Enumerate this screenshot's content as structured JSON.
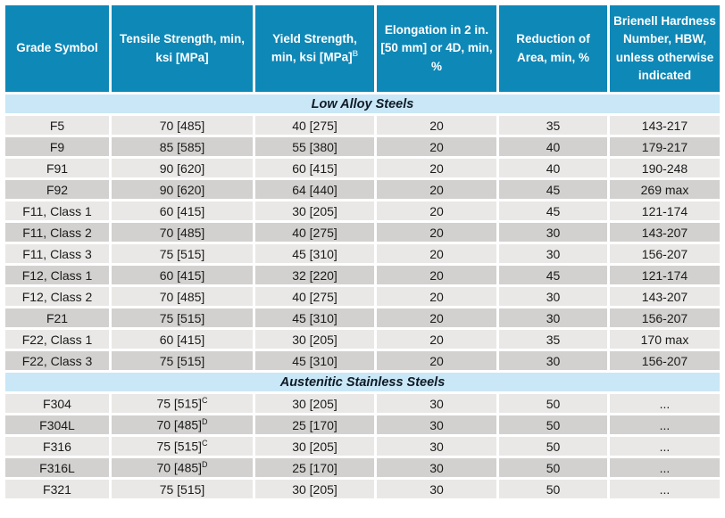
{
  "colors": {
    "header_bg": "#0e88b7",
    "band_bg": "#c9e7f6",
    "row_light": "#e9e8e6",
    "row_dark": "#d3d1cf",
    "header_text": "#ffffff",
    "body_text": "#1a1a1a",
    "band_text": "#0f1a26"
  },
  "table": {
    "columns": [
      {
        "label": "Grade Symbol",
        "sup": ""
      },
      {
        "label": "Tensile Strength, min, ksi [MPa]",
        "sup": ""
      },
      {
        "label": "Yield Strength, min, ksi [MPa]",
        "sup": "B"
      },
      {
        "label": "Elongation in 2 in. [50 mm] or 4D, min, %",
        "sup": ""
      },
      {
        "label": "Reduction of Area, min, %",
        "sup": ""
      },
      {
        "label": "Brienell Hardness Number, HBW, unless otherwise indicated",
        "sup": ""
      }
    ],
    "sections": [
      {
        "title": "Low Alloy Steels",
        "rows": [
          {
            "grade": "F5",
            "tensile": "70 [485]",
            "tensile_sup": "",
            "yield": "40 [275]",
            "elongation": "20",
            "reduction": "35",
            "hardness": "143-217"
          },
          {
            "grade": "F9",
            "tensile": "85 [585]",
            "tensile_sup": "",
            "yield": "55 [380]",
            "elongation": "20",
            "reduction": "40",
            "hardness": "179-217"
          },
          {
            "grade": "F91",
            "tensile": "90 [620]",
            "tensile_sup": "",
            "yield": "60 [415]",
            "elongation": "20",
            "reduction": "40",
            "hardness": "190-248"
          },
          {
            "grade": "F92",
            "tensile": "90 [620]",
            "tensile_sup": "",
            "yield": "64 [440]",
            "elongation": "20",
            "reduction": "45",
            "hardness": "269 max"
          },
          {
            "grade": "F11, Class 1",
            "tensile": "60 [415]",
            "tensile_sup": "",
            "yield": "30 [205]",
            "elongation": "20",
            "reduction": "45",
            "hardness": "121-174"
          },
          {
            "grade": "F11, Class 2",
            "tensile": "70 [485]",
            "tensile_sup": "",
            "yield": "40 [275]",
            "elongation": "20",
            "reduction": "30",
            "hardness": "143-207"
          },
          {
            "grade": "F11, Class 3",
            "tensile": "75 [515]",
            "tensile_sup": "",
            "yield": "45 [310]",
            "elongation": "20",
            "reduction": "30",
            "hardness": "156-207"
          },
          {
            "grade": "F12, Class 1",
            "tensile": "60 [415]",
            "tensile_sup": "",
            "yield": "32 [220]",
            "elongation": "20",
            "reduction": "45",
            "hardness": "121-174"
          },
          {
            "grade": "F12, Class 2",
            "tensile": "70 [485]",
            "tensile_sup": "",
            "yield": "40 [275]",
            "elongation": "20",
            "reduction": "30",
            "hardness": "143-207"
          },
          {
            "grade": "F21",
            "tensile": "75 [515]",
            "tensile_sup": "",
            "yield": "45 [310]",
            "elongation": "20",
            "reduction": "30",
            "hardness": "156-207"
          },
          {
            "grade": "F22, Class 1",
            "tensile": "60 [415]",
            "tensile_sup": "",
            "yield": "30 [205]",
            "elongation": "20",
            "reduction": "35",
            "hardness": "170 max"
          },
          {
            "grade": "F22, Class 3",
            "tensile": "75 [515]",
            "tensile_sup": "",
            "yield": "45 [310]",
            "elongation": "20",
            "reduction": "30",
            "hardness": "156-207"
          }
        ]
      },
      {
        "title": "Austenitic Stainless Steels",
        "rows": [
          {
            "grade": "F304",
            "tensile": "75 [515]",
            "tensile_sup": "C",
            "yield": "30 [205]",
            "elongation": "30",
            "reduction": "50",
            "hardness": "..."
          },
          {
            "grade": "F304L",
            "tensile": "70 [485]",
            "tensile_sup": "D",
            "yield": "25 [170]",
            "elongation": "30",
            "reduction": "50",
            "hardness": "..."
          },
          {
            "grade": "F316",
            "tensile": "75 [515]",
            "tensile_sup": "C",
            "yield": "30 [205]",
            "elongation": "30",
            "reduction": "50",
            "hardness": "..."
          },
          {
            "grade": "F316L",
            "tensile": "70 [485]",
            "tensile_sup": "D",
            "yield": "25 [170]",
            "elongation": "30",
            "reduction": "50",
            "hardness": "..."
          },
          {
            "grade": "F321",
            "tensile": "75 [515]",
            "tensile_sup": "",
            "yield": "30 [205]",
            "elongation": "30",
            "reduction": "50",
            "hardness": "..."
          }
        ]
      }
    ]
  }
}
